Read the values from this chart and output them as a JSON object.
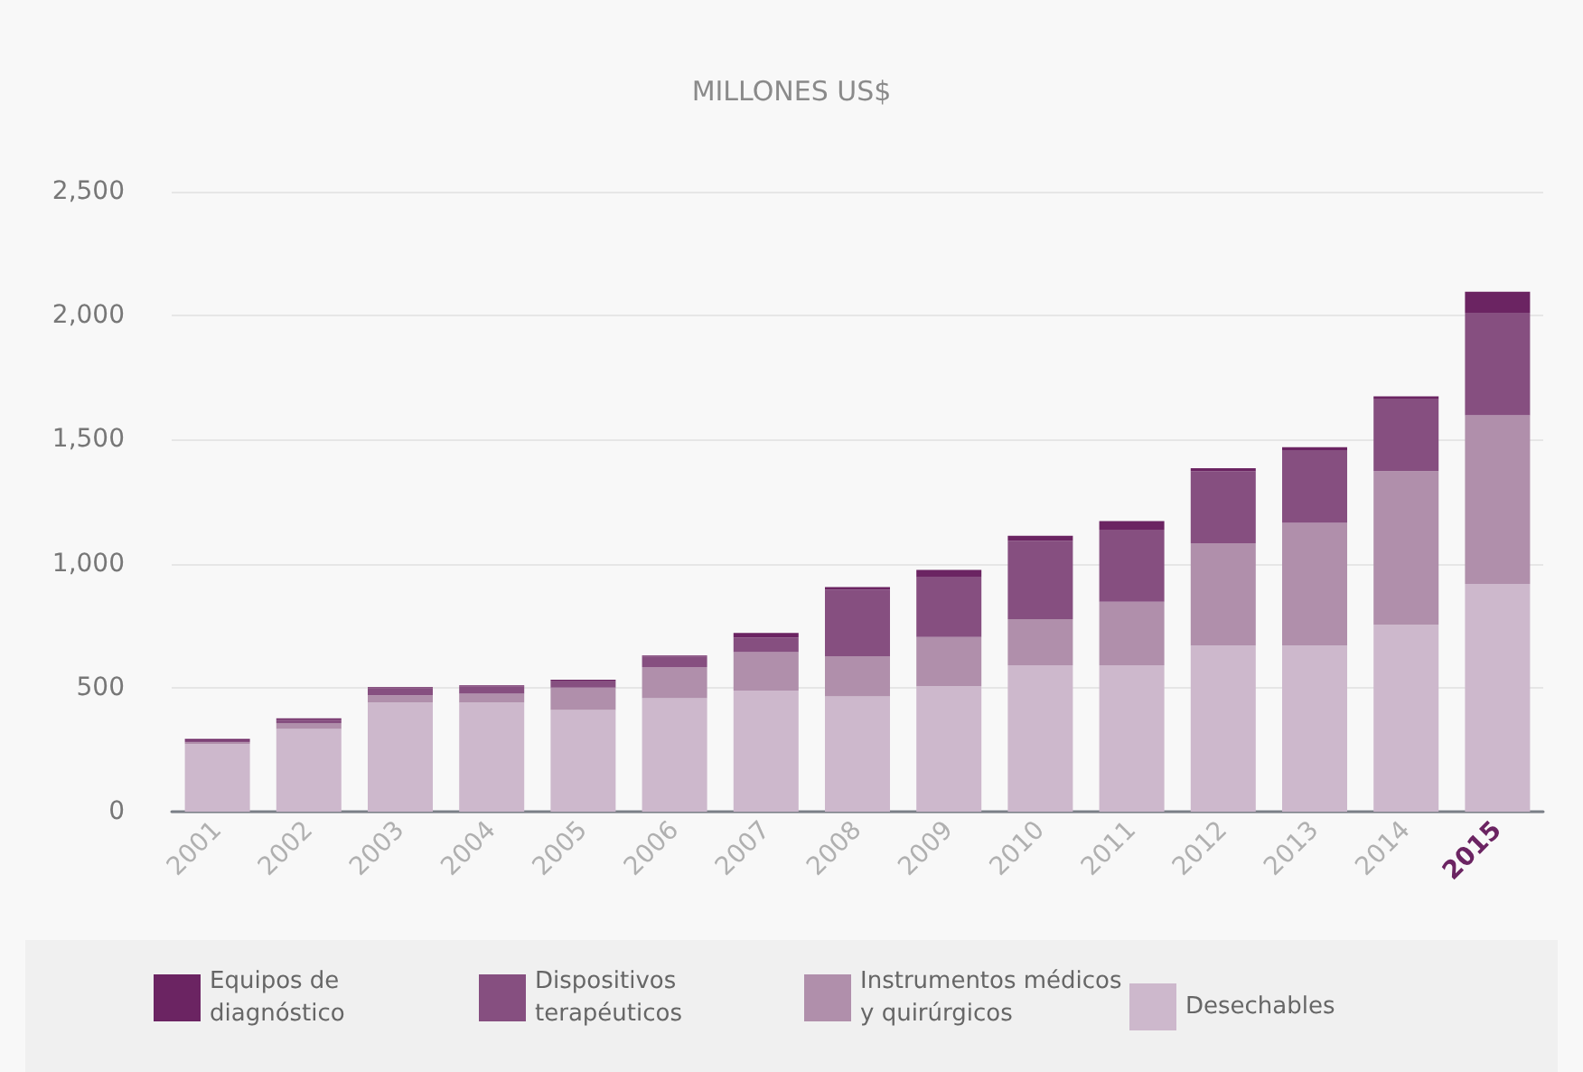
{
  "chart_data": {
    "type": "bar",
    "title": "MILLONES US$",
    "stacked": true,
    "legend": "bottom",
    "grid": "y",
    "categories": [
      "2001",
      "2002",
      "2003",
      "2004",
      "2005",
      "2006",
      "2007",
      "2008",
      "2009",
      "2010",
      "2011",
      "2012",
      "2013",
      "2014",
      "2015"
    ],
    "ylim": [
      0,
      2500
    ],
    "yticks": [
      0,
      500,
      {
        "value": 1000,
        "label": "1,000"
      },
      {
        "value": 1500,
        "label": "1,500"
      },
      {
        "value": 2000,
        "label": "2,000"
      },
      {
        "value": 2500,
        "label": "2,500"
      }
    ],
    "series": [
      {
        "name": "Desechables",
        "color": "#cdb8cc",
        "values": [
          272,
          333,
          440,
          440,
          410,
          457,
          488,
          465,
          506,
          590,
          590,
          670,
          670,
          754,
          918
        ]
      },
      {
        "name": "Instrumentos médicos y quirúrgicos",
        "color": "#b08fab",
        "values": [
          8,
          24,
          29,
          36,
          90,
          126,
          155,
          162,
          198,
          186,
          256,
          412,
          494,
          619,
          680
        ]
      },
      {
        "name": "Dispositivos terapéuticos",
        "color": "#864f80",
        "values": [
          8,
          14,
          28,
          29,
          28,
          43,
          59,
          269,
          241,
          316,
          291,
          291,
          294,
          290,
          414
        ]
      },
      {
        "name": "Equipos de diagnóstico",
        "color": "#6b2462",
        "values": [
          5,
          5,
          5,
          4,
          4,
          4,
          19,
          10,
          30,
          20,
          35,
          12,
          12,
          12,
          84
        ]
      }
    ]
  }
}
